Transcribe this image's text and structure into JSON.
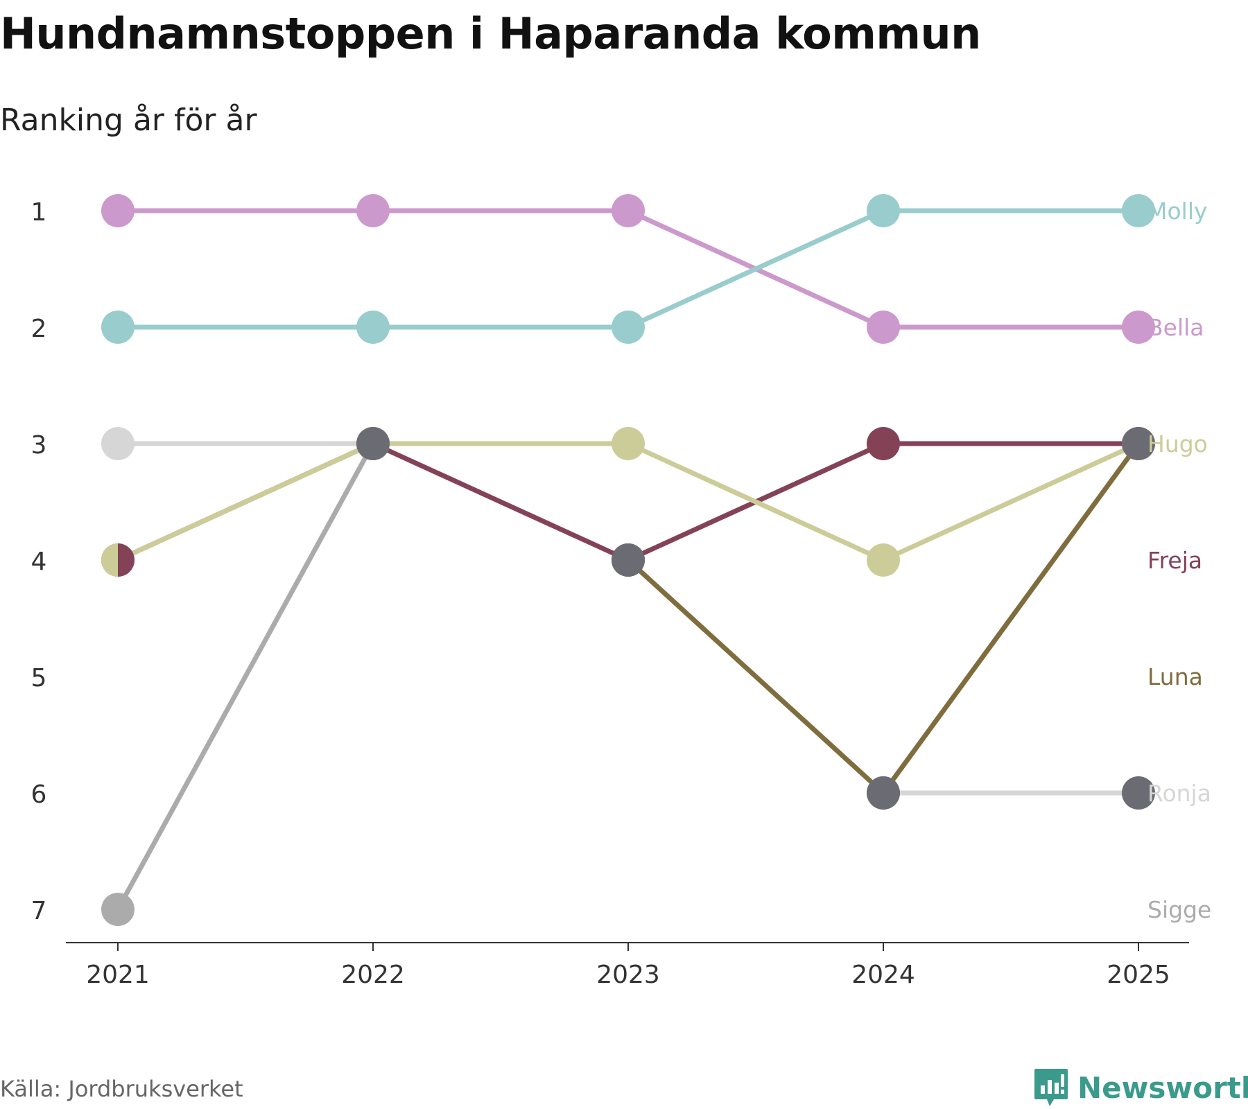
{
  "title": "Hundnamnstoppen i Haparanda kommun",
  "subtitle": "Ranking år för år",
  "source": "Källa: Jordbruksverket",
  "brand": {
    "name": "Newsworthy",
    "color": "#3a9a8c",
    "icon": "bar-chart-speech-bubble-icon"
  },
  "chart_data": {
    "type": "line",
    "chart_kind": "bump",
    "title": "Hundnamnstoppen i Haparanda kommun",
    "subtitle": "Ranking år för år",
    "xlabel": "",
    "ylabel": "",
    "x": [
      "2021",
      "2022",
      "2023",
      "2024",
      "2025"
    ],
    "y_ticks": [
      "1",
      "2",
      "3",
      "4",
      "5",
      "6",
      "7"
    ],
    "ylim": [
      1,
      7
    ],
    "y_inverted": true,
    "grid": false,
    "legend": "right-side direct labels",
    "series": [
      {
        "name": "Sigge",
        "color": "#ababab",
        "values": [
          7,
          3,
          null,
          null,
          null
        ],
        "label_rank": 7
      },
      {
        "name": "Ronja",
        "color": "#d6d6d6",
        "values": [
          3,
          3,
          null,
          6,
          6
        ],
        "label_rank": 6
      },
      {
        "name": "Luna",
        "color": "#7f6d3e",
        "values": [
          null,
          null,
          4,
          6,
          3
        ],
        "label_rank": 5
      },
      {
        "name": "Freja",
        "color": "#844257",
        "values": [
          4,
          3,
          4,
          3,
          3
        ],
        "label_rank": 4
      },
      {
        "name": "Hugo",
        "color": "#cccc99",
        "values": [
          4,
          3,
          3,
          4,
          3
        ],
        "label_rank": 3
      },
      {
        "name": "Bella",
        "color": "#cc99cc",
        "values": [
          1,
          1,
          1,
          2,
          2
        ],
        "label_rank": 2
      },
      {
        "name": "Molly",
        "color": "#99cccc",
        "values": [
          2,
          2,
          2,
          1,
          1
        ],
        "label_rank": 1
      }
    ],
    "shared_markers": [
      {
        "x": "2021",
        "rank": 4,
        "style": "split",
        "colors": [
          "#cccc99",
          "#844257"
        ]
      },
      {
        "x": "2022",
        "rank": 3,
        "style": "shared",
        "color": "#6b6b73"
      },
      {
        "x": "2023",
        "rank": 4,
        "style": "shared",
        "color": "#6b6b73"
      },
      {
        "x": "2024",
        "rank": 6,
        "style": "shared",
        "color": "#6b6b73"
      },
      {
        "x": "2025",
        "rank": 3,
        "style": "shared",
        "color": "#6b6b73"
      },
      {
        "x": "2025",
        "rank": 6,
        "style": "shared",
        "color": "#6b6b73"
      }
    ]
  }
}
